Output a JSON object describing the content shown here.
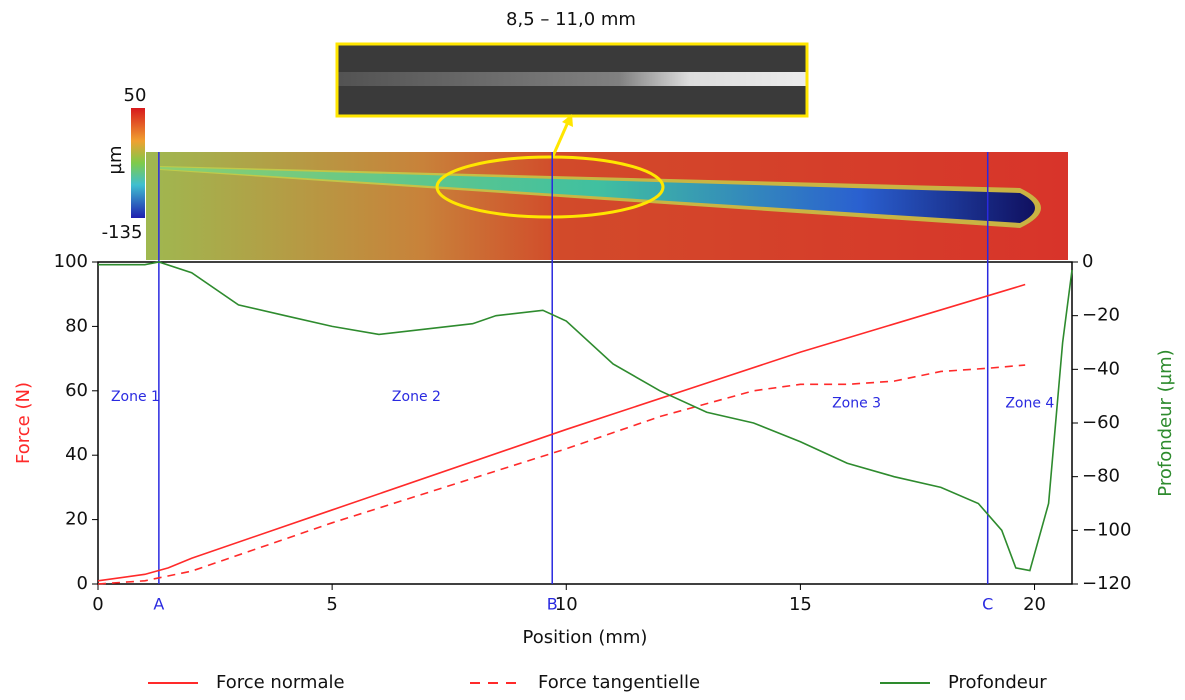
{
  "chart_data": {
    "type": "line",
    "inset_title": "8,5 – 11,0 mm",
    "colorbar": {
      "label": "µm",
      "max": 50,
      "min": -135
    },
    "xlabel": "Position (mm)",
    "ylabel": "Force (N)",
    "y2label": "Profondeur (µm)",
    "xlim": [
      0,
      20.8
    ],
    "ylim": [
      0,
      100
    ],
    "y2lim": [
      -120,
      0
    ],
    "xticks": [
      0,
      5,
      10,
      15,
      20
    ],
    "yticks": [
      0,
      20,
      40,
      60,
      80,
      100
    ],
    "y2ticks": [
      {
        "value": -120,
        "label": "−120"
      },
      {
        "value": -100,
        "label": "−100"
      },
      {
        "value": -80,
        "label": "−80"
      },
      {
        "value": -60,
        "label": "−60"
      },
      {
        "value": -40,
        "label": "−40"
      },
      {
        "value": -20,
        "label": "−20"
      },
      0
    ],
    "series": [
      {
        "name": "Force normale",
        "color": "#ff2a2a",
        "dash": false,
        "axis": "y",
        "x": [
          0,
          1,
          1.5,
          2,
          5,
          10,
          15,
          19.8
        ],
        "values": [
          1,
          3,
          5,
          8,
          23,
          48,
          72,
          93
        ]
      },
      {
        "name": "Force tangentielle",
        "color": "#ff2a2a",
        "dash": true,
        "axis": "y",
        "x": [
          0,
          1,
          2,
          5,
          10,
          12,
          14,
          15,
          16,
          17,
          18,
          19,
          19.8
        ],
        "values": [
          0,
          1,
          4,
          19,
          42,
          52,
          60,
          62,
          62,
          63,
          66,
          67,
          68
        ]
      },
      {
        "name": "Profondeur",
        "color": "#2e8b2e",
        "dash": false,
        "axis": "y2",
        "x": [
          0,
          1,
          1.3,
          2,
          3,
          4,
          5,
          6,
          7,
          8,
          8.5,
          9.5,
          10,
          11,
          12,
          13,
          14,
          15,
          16,
          17,
          18,
          18.8,
          19.3,
          19.6,
          19.9,
          20.3,
          20.6,
          20.8
        ],
        "values": [
          -1,
          -1,
          0,
          -4,
          -16,
          -20,
          -24,
          -27,
          -25,
          -23,
          -20,
          -18,
          -22,
          -38,
          -48,
          -56,
          -60,
          -67,
          -75,
          -80,
          -84,
          -90,
          -100,
          -114,
          -115,
          -90,
          -30,
          -3
        ]
      }
    ],
    "markers": [
      {
        "label": "A",
        "x": 1.3
      },
      {
        "label": "B",
        "x": 9.7
      },
      {
        "label": "C",
        "x": 19.0
      }
    ],
    "zones": [
      {
        "label": "Zone 1",
        "x": 0.8,
        "y": 58
      },
      {
        "label": "Zone 2",
        "x": 6.8,
        "y": 58
      },
      {
        "label": "Zone 3",
        "x": 16.2,
        "y": 56
      },
      {
        "label": "Zone 4",
        "x": 19.9,
        "y": 56
      }
    ]
  }
}
